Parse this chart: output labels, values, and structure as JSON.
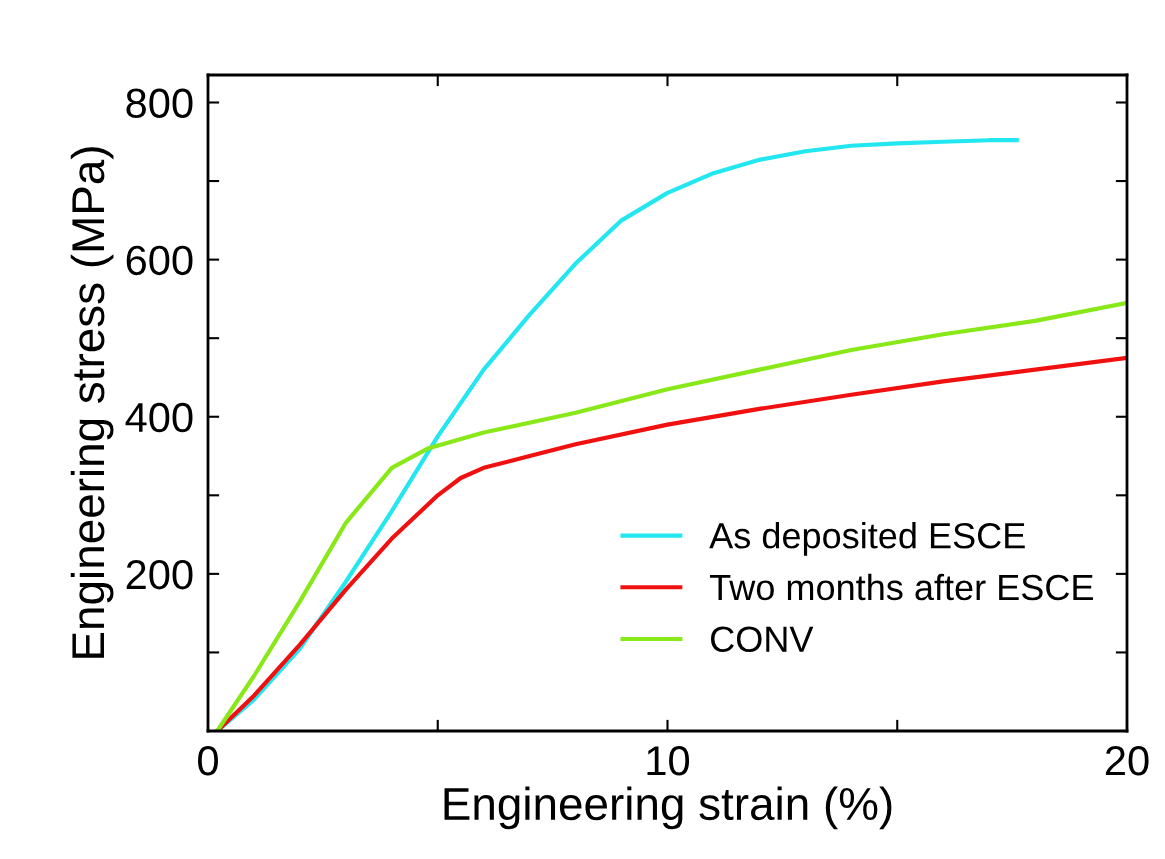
{
  "chart_data": {
    "type": "line",
    "xlabel": "Engineering strain (%)",
    "ylabel": "Engineering stress (MPa)",
    "xlim": [
      0,
      20
    ],
    "ylim": [
      0,
      835
    ],
    "xticks": [
      0,
      {
        "value": 5,
        "label": null
      },
      10,
      {
        "value": 15,
        "label": null
      },
      20
    ],
    "yticks": [
      {
        "value": 100,
        "label": null
      },
      200,
      {
        "value": 300,
        "label": null
      },
      400,
      {
        "value": 500,
        "label": null
      },
      600,
      {
        "value": 700,
        "label": null
      },
      800
    ],
    "grid": false,
    "legend": "bottom right",
    "marker": "none",
    "line_style": "solid",
    "series": [
      {
        "name": "As deposited ESCE",
        "color": "#22e6f0",
        "x": [
          0.2,
          1,
          2,
          3,
          4,
          5,
          6,
          7,
          8,
          9,
          10,
          11,
          12,
          13,
          14,
          15,
          16,
          17,
          17.6
        ],
        "values": [
          0,
          40,
          105,
          190,
          280,
          375,
          460,
          530,
          595,
          650,
          685,
          710,
          727,
          738,
          745,
          748,
          750,
          752,
          752
        ]
      },
      {
        "name": "Two months after ESCE",
        "color": "#f01010",
        "x": [
          0.2,
          1,
          2,
          3,
          4,
          5,
          5.5,
          6,
          7,
          8,
          10,
          12,
          14,
          16,
          18,
          20
        ],
        "values": [
          0,
          45,
          110,
          180,
          245,
          300,
          322,
          335,
          350,
          365,
          390,
          410,
          428,
          445,
          460,
          475
        ]
      },
      {
        "name": "CONV",
        "color": "#88e818",
        "x": [
          0.2,
          1,
          2,
          3,
          4,
          4.8,
          6,
          8,
          10,
          12,
          14,
          16,
          18,
          20
        ],
        "values": [
          0,
          70,
          165,
          265,
          335,
          360,
          380,
          405,
          435,
          460,
          485,
          505,
          522,
          545
        ]
      }
    ]
  }
}
